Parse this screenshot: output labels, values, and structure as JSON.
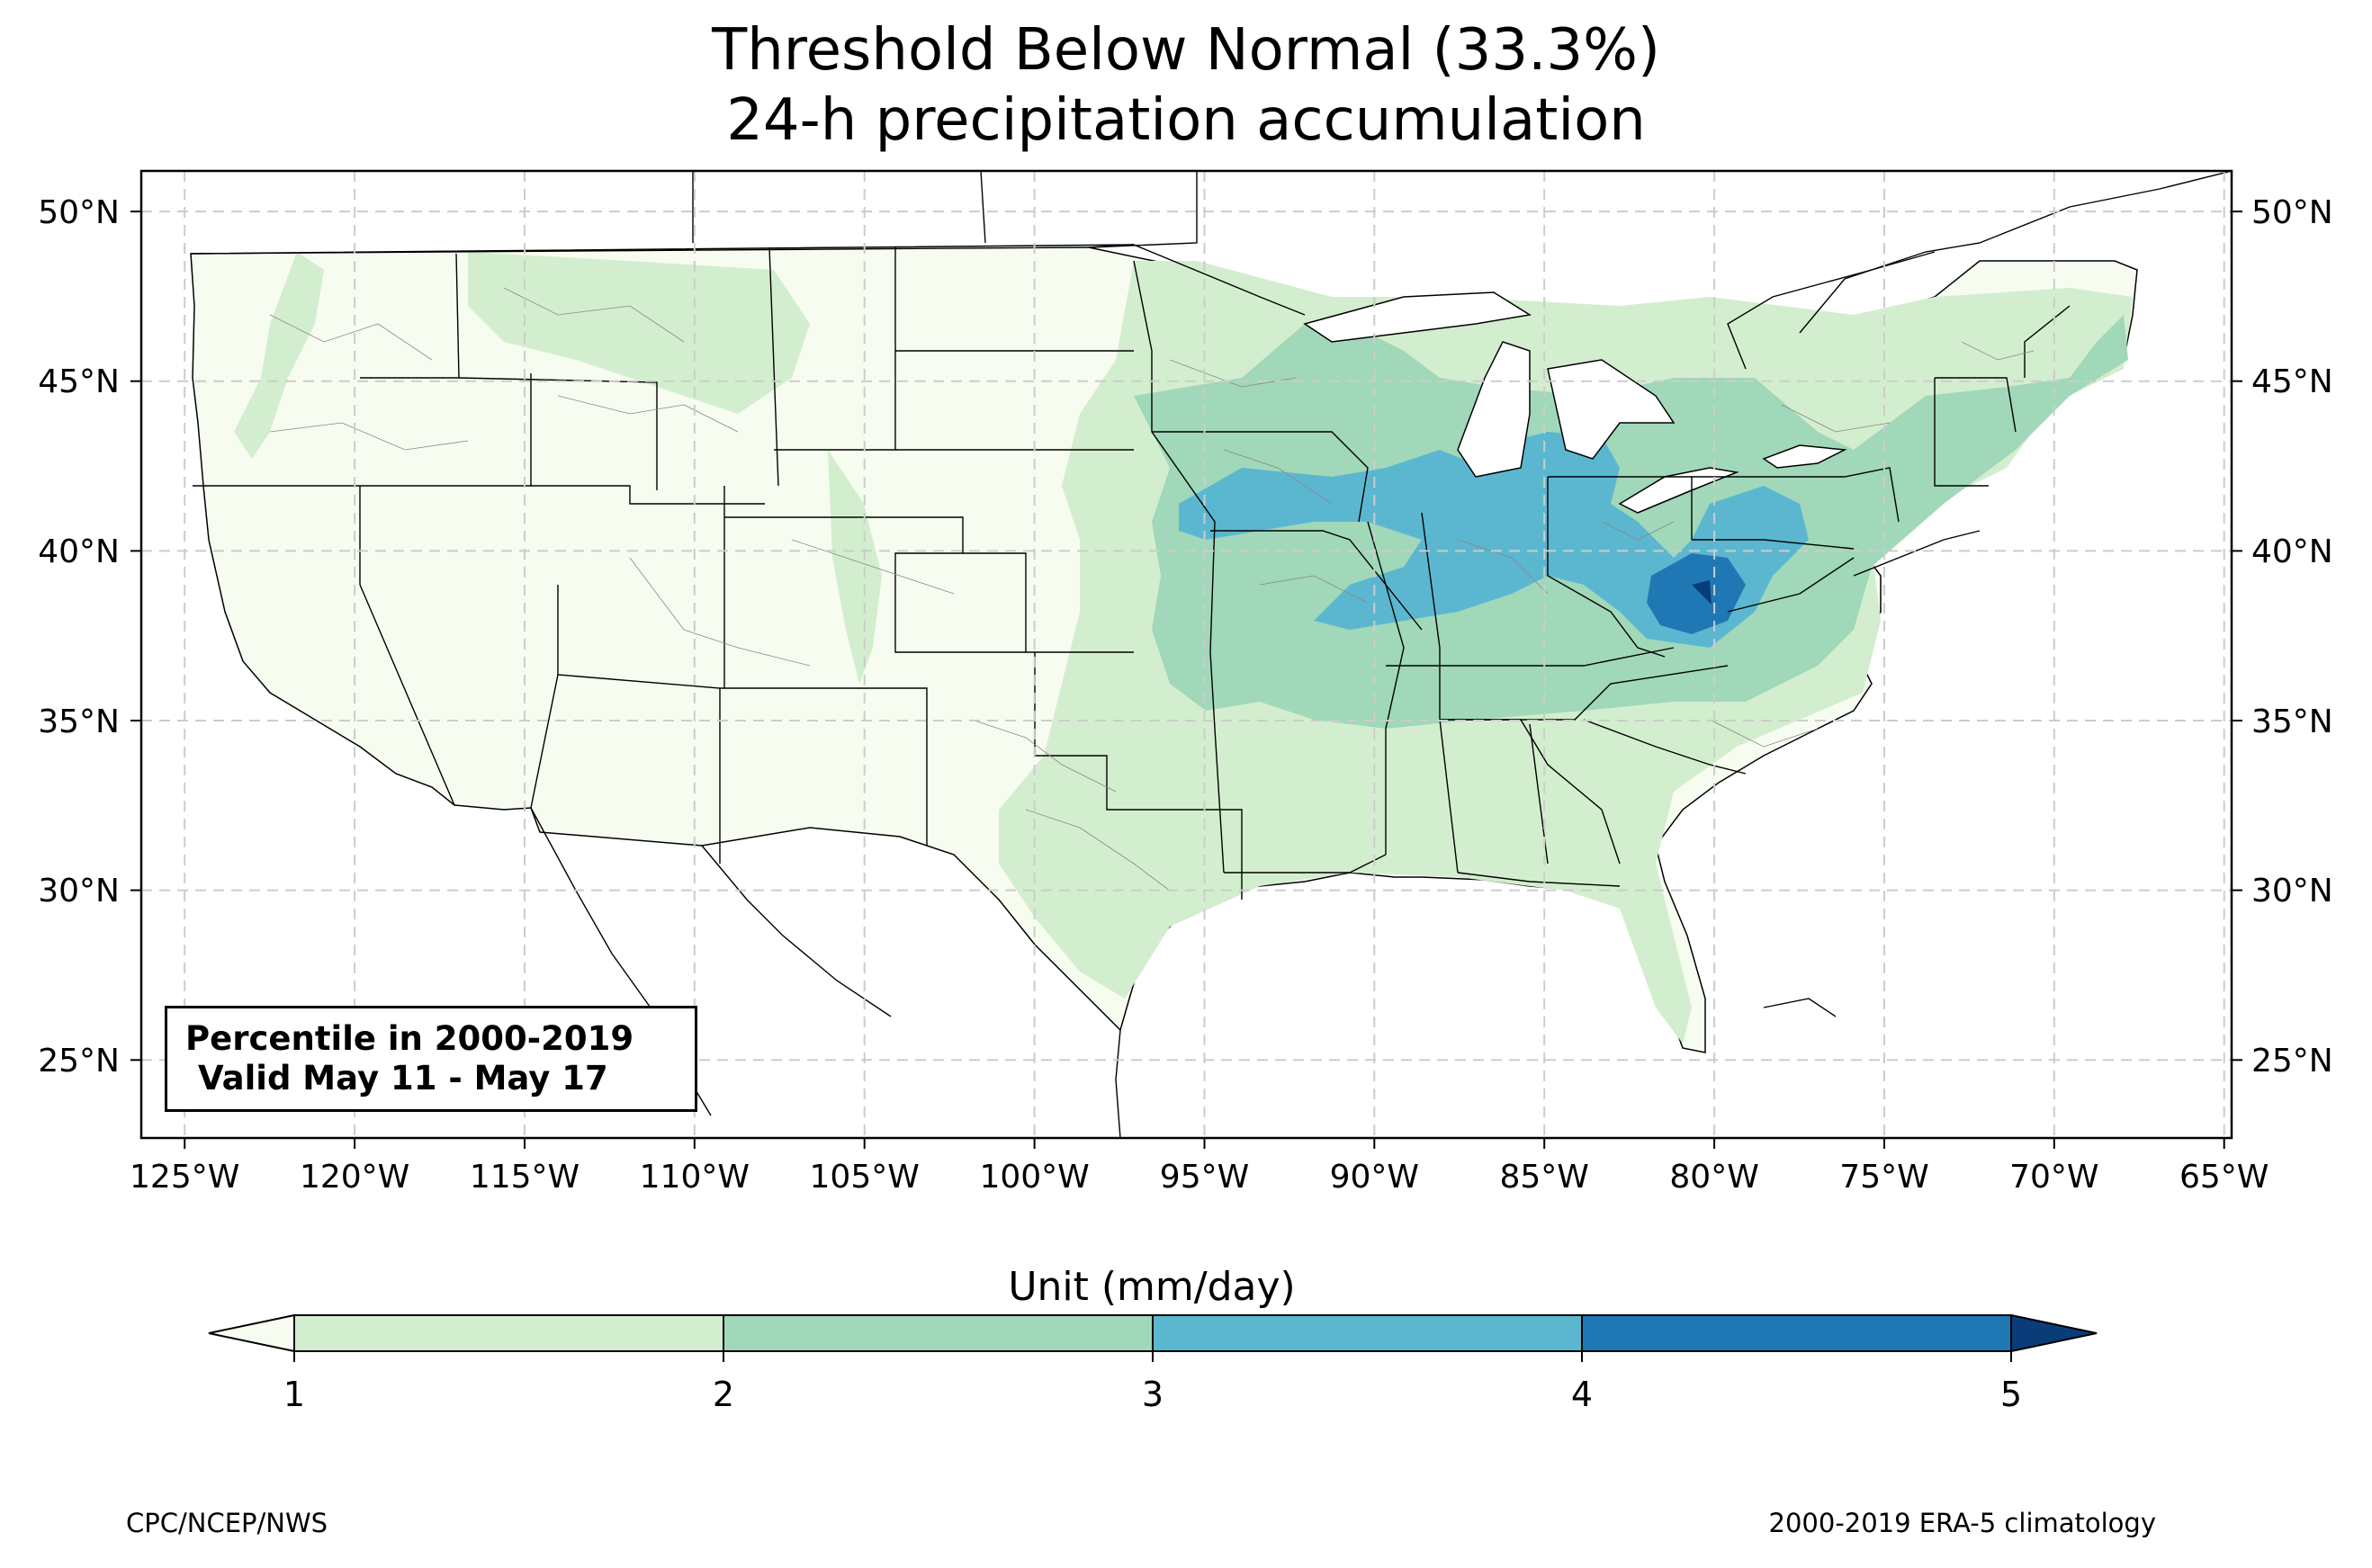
{
  "title": {
    "line1": "Threshold Below Normal (33.3%)",
    "line2": "24-h precipitation accumulation"
  },
  "annotation": {
    "line1": "Percentile in 2000-2019",
    "line2": "Valid May 11 - May 17"
  },
  "map": {
    "region": "Contiguous United States",
    "projection": "PlateCarree",
    "lon_range": [
      -126.3,
      -64.8
    ],
    "lat_range": [
      22.8,
      51.3
    ],
    "lat_ticks": [
      "25°N",
      "30°N",
      "35°N",
      "40°N",
      "45°N",
      "50°N"
    ],
    "lon_ticks": [
      "125°W",
      "120°W",
      "115°W",
      "110°W",
      "105°W",
      "100°W",
      "95°W",
      "90°W",
      "85°W",
      "80°W",
      "75°W",
      "70°W",
      "65°W"
    ],
    "grid": true
  },
  "colorbar": {
    "label": "Unit (mm/day)",
    "ticks": [
      "1",
      "2",
      "3",
      "4",
      "5"
    ],
    "colors": {
      "below_min": "#f7fcf0",
      "1-2": "#d3eece",
      "2-3": "#a0d8b9",
      "3-4": "#5bb7d0",
      "4-5": "#1f78b4",
      "above_max": "#0a3c7a"
    },
    "extend": "both"
  },
  "footer": {
    "left": "CPC/NCEP/NWS",
    "right": "2000-2019 ERA-5 climatology"
  }
}
